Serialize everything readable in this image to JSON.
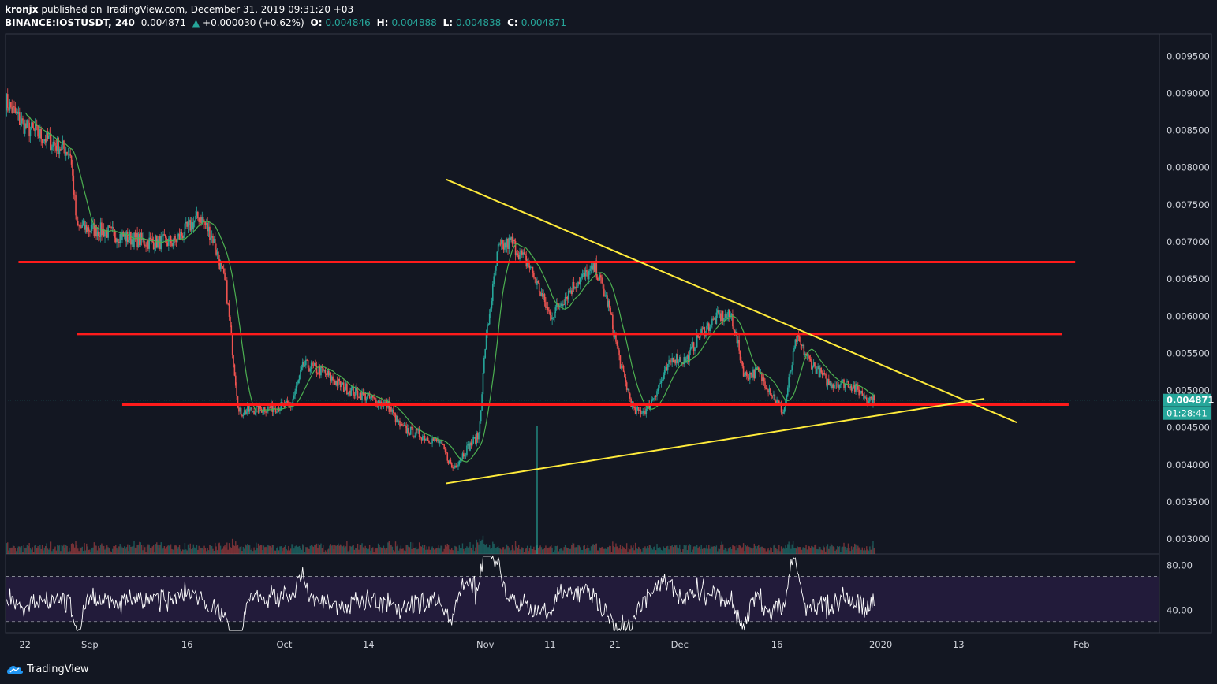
{
  "header": {
    "author": "kronjx",
    "published": "published on TradingView.com, December 31, 2019 09:31:20 +03",
    "symbol": "BINANCE:IOSTUSDT, 240",
    "last": "0.004871",
    "change_arrow": "▲",
    "change": "+0.000030 (+0.62%)",
    "o_label": "O:",
    "o": "0.004846",
    "h_label": "H:",
    "h": "0.004888",
    "l_label": "L:",
    "l": "0.004838",
    "c_label": "C:",
    "c": "0.004871"
  },
  "footer": {
    "brand": "TradingView",
    "logo_icon": "tradingview-logo-icon"
  },
  "colors": {
    "background": "#131722",
    "up": "#26a69a",
    "down": "#ef5350",
    "ma": "#4caf50",
    "trendline": "#ffeb3b",
    "level": "#ff1b1b",
    "rsi": "#ffffff",
    "rsi_band": "#2a1e45"
  },
  "chart_data": [
    {
      "type": "candlestick",
      "title": "BINANCE:IOSTUSDT, 240",
      "y_ticks": [
        "0.009500",
        "0.009000",
        "0.008500",
        "0.008000",
        "0.007500",
        "0.007000",
        "0.006500",
        "0.006000",
        "0.005500",
        "0.005000",
        "0.004500",
        "0.004000",
        "0.003500",
        "0.003000"
      ],
      "ylim": [
        0.0028,
        0.0098
      ],
      "x_ticks": [
        "22",
        "Sep",
        "16",
        "Oct",
        "14",
        "Nov",
        "11",
        "21",
        "Dec",
        "16",
        "2020",
        "13",
        "Feb"
      ],
      "xlim": [
        "2019-08-19",
        "2020-02-13"
      ],
      "last_price": "0.004871",
      "countdown": "01:28:41",
      "price_path": [
        [
          "2019-08-19",
          0.0089
        ],
        [
          "2019-08-22",
          0.00855
        ],
        [
          "2019-08-25",
          0.0084
        ],
        [
          "2019-08-29",
          0.0082
        ],
        [
          "2019-08-30",
          0.0072
        ],
        [
          "2019-09-03",
          0.00715
        ],
        [
          "2019-09-07",
          0.00705
        ],
        [
          "2019-09-10",
          0.007
        ],
        [
          "2019-09-14",
          0.007
        ],
        [
          "2019-09-18",
          0.00735
        ],
        [
          "2019-09-20",
          0.00705
        ],
        [
          "2019-09-22",
          0.0064
        ],
        [
          "2019-09-24",
          0.0047
        ],
        [
          "2019-09-27",
          0.00475
        ],
        [
          "2019-09-30",
          0.00478
        ],
        [
          "2019-10-02",
          0.0048
        ],
        [
          "2019-10-04",
          0.00535
        ],
        [
          "2019-10-07",
          0.00525
        ],
        [
          "2019-10-10",
          0.00505
        ],
        [
          "2019-10-14",
          0.0049
        ],
        [
          "2019-10-17",
          0.0048
        ],
        [
          "2019-10-19",
          0.0045
        ],
        [
          "2019-10-22",
          0.0044
        ],
        [
          "2019-10-25",
          0.0043
        ],
        [
          "2019-10-27",
          0.00395
        ],
        [
          "2019-10-29",
          0.0042
        ],
        [
          "2019-10-31",
          0.0044
        ],
        [
          "2019-11-01",
          0.0056
        ],
        [
          "2019-11-03",
          0.0069
        ],
        [
          "2019-11-05",
          0.007
        ],
        [
          "2019-11-08",
          0.00665
        ],
        [
          "2019-11-11",
          0.006
        ],
        [
          "2019-11-15",
          0.00645
        ],
        [
          "2019-11-18",
          0.00665
        ],
        [
          "2019-11-20",
          0.00615
        ],
        [
          "2019-11-22",
          0.0053
        ],
        [
          "2019-11-24",
          0.0047
        ],
        [
          "2019-11-26",
          0.00475
        ],
        [
          "2019-11-28",
          0.0051
        ],
        [
          "2019-11-30",
          0.00545
        ],
        [
          "2019-12-02",
          0.0054
        ],
        [
          "2019-12-04",
          0.00575
        ],
        [
          "2019-12-07",
          0.006
        ],
        [
          "2019-12-09",
          0.006
        ],
        [
          "2019-12-11",
          0.0052
        ],
        [
          "2019-12-13",
          0.00525
        ],
        [
          "2019-12-15",
          0.005
        ],
        [
          "2019-12-17",
          0.0047
        ],
        [
          "2019-12-19",
          0.0057
        ],
        [
          "2019-12-21",
          0.0054
        ],
        [
          "2019-12-24",
          0.0051
        ],
        [
          "2019-12-27",
          0.0051
        ],
        [
          "2019-12-30",
          0.0049
        ],
        [
          "2019-12-31",
          0.004871
        ]
      ],
      "lines": [
        {
          "kind": "resistance",
          "y": 0.00673,
          "from": "2019-08-21",
          "to": "2020-01-31"
        },
        {
          "kind": "resistance",
          "y": 0.00576,
          "from": "2019-08-30",
          "to": "2020-01-29"
        },
        {
          "kind": "support",
          "y": 0.00481,
          "from": "2019-09-06",
          "to": "2020-01-30"
        },
        {
          "kind": "trendline",
          "points": [
            [
              "2019-10-26",
              0.00784
            ],
            [
              "2020-01-22",
              0.00457
            ]
          ]
        },
        {
          "kind": "trendline",
          "points": [
            [
              "2019-10-26",
              0.00375
            ],
            [
              "2020-01-17",
              0.00489
            ]
          ]
        }
      ],
      "volume_spike": [
        "2019-11-09",
        "large green bar"
      ]
    },
    {
      "type": "line",
      "title": "RSI",
      "y_ticks": [
        "80.00",
        "40.00"
      ],
      "ylim": [
        20,
        90
      ],
      "band": [
        30,
        70
      ]
    }
  ]
}
